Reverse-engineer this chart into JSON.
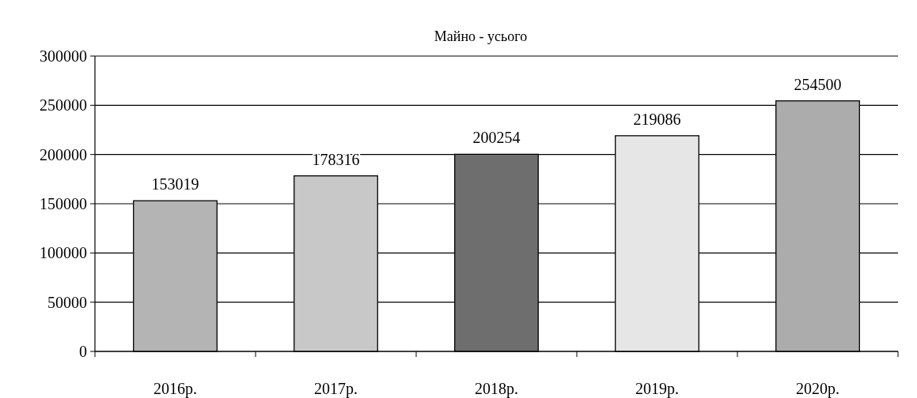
{
  "chart_data": {
    "type": "bar",
    "title": "Майно - усього",
    "categories": [
      "2016р.",
      "2017р.",
      "2018р.",
      "2019р.",
      "2020р."
    ],
    "values": [
      153019,
      178316,
      200254,
      219086,
      254500
    ],
    "colors": [
      "#b4b4b4",
      "#c8c8c8",
      "#6e6e6e",
      "#e6e6e6",
      "#acacac"
    ],
    "ylim": [
      0,
      300000
    ],
    "yticks": [
      0,
      50000,
      100000,
      150000,
      200000,
      250000,
      300000
    ],
    "grid": "y",
    "data_labels": true
  }
}
